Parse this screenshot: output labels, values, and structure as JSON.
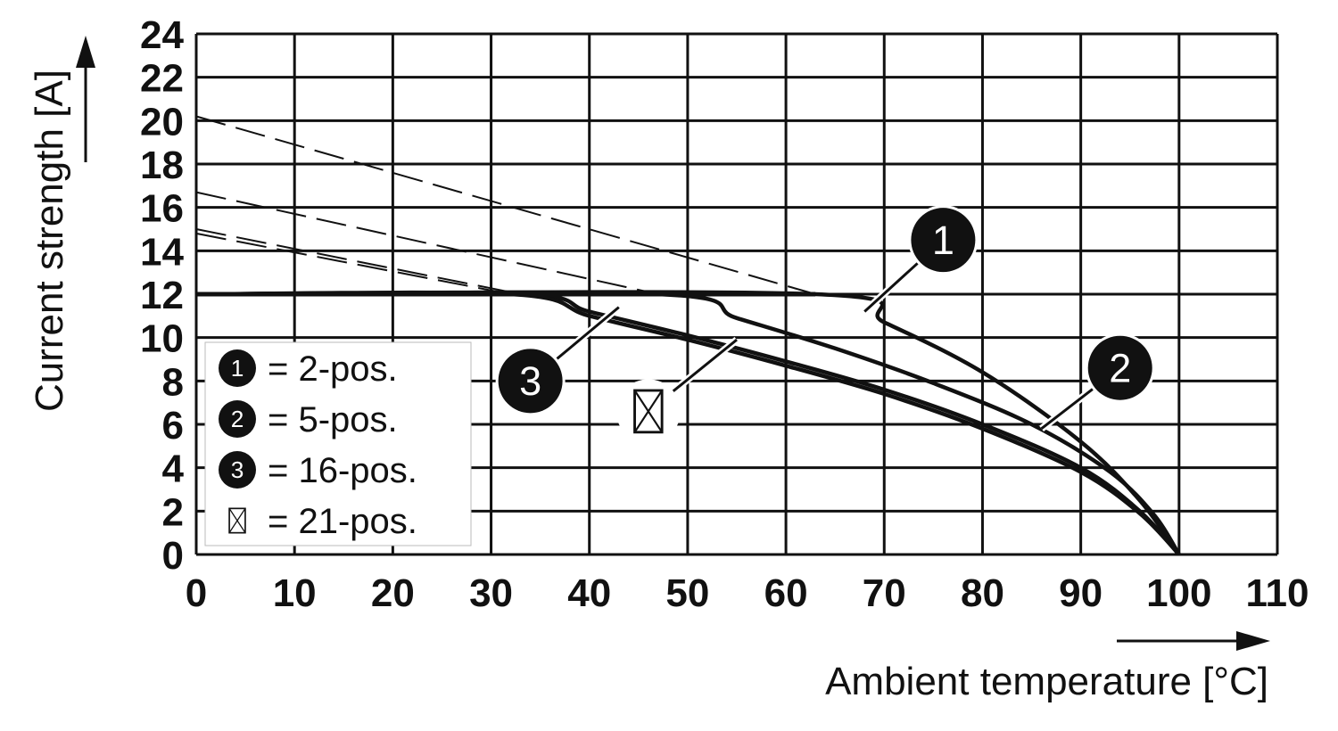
{
  "chart_data": {
    "type": "line",
    "xlabel": "Ambient temperature [°C]",
    "ylabel": "Current strength [A]",
    "xlim": [
      0,
      110
    ],
    "ylim": [
      0,
      24
    ],
    "x_ticks": [
      "0",
      "10",
      "20",
      "30",
      "40",
      "50",
      "60",
      "70",
      "80",
      "90",
      "100",
      "110"
    ],
    "y_ticks": [
      "0",
      "2",
      "4",
      "6",
      "8",
      "10",
      "12",
      "14",
      "16",
      "18",
      "20",
      "22",
      "24"
    ],
    "grid": true,
    "legend_placement": "lower-left",
    "series": [
      {
        "marker": "1",
        "name": "2-pos.",
        "values": [
          [
            0,
            12
          ],
          [
            63,
            12
          ],
          [
            70,
            10.7
          ],
          [
            80,
            8.4
          ],
          [
            90,
            5.2
          ],
          [
            96,
            2.5
          ],
          [
            100,
            0
          ]
        ]
      },
      {
        "marker": "2",
        "name": "5-pos.",
        "values": [
          [
            0,
            12
          ],
          [
            47,
            12
          ],
          [
            55,
            10.9
          ],
          [
            65,
            9.5
          ],
          [
            75,
            7.9
          ],
          [
            85,
            6.0
          ],
          [
            93,
            3.8
          ],
          [
            97.5,
            1.8
          ],
          [
            100,
            0
          ]
        ]
      },
      {
        "marker": "3",
        "name": "16-pos.",
        "values": [
          [
            0,
            12
          ],
          [
            33,
            12
          ],
          [
            40,
            11.2
          ],
          [
            50,
            10.1
          ],
          [
            60,
            8.9
          ],
          [
            70,
            7.6
          ],
          [
            80,
            6.0
          ],
          [
            90,
            4.0
          ],
          [
            96,
            2.0
          ],
          [
            100,
            0
          ]
        ]
      },
      {
        "marker": "⊠",
        "name": "21-pos.",
        "values": [
          [
            0,
            12
          ],
          [
            32,
            12
          ],
          [
            40,
            11.0
          ],
          [
            50,
            9.9
          ],
          [
            60,
            8.7
          ],
          [
            70,
            7.4
          ],
          [
            80,
            5.8
          ],
          [
            90,
            3.8
          ],
          [
            96,
            1.9
          ],
          [
            100,
            0
          ]
        ]
      }
    ],
    "extrapolated_dashed": [
      {
        "series": "2-pos.",
        "values": [
          [
            0,
            20.2
          ],
          [
            63,
            12
          ]
        ]
      },
      {
        "series": "5-pos.",
        "values": [
          [
            0,
            16.7
          ],
          [
            47,
            12
          ]
        ]
      },
      {
        "series": "16-pos.",
        "values": [
          [
            0,
            15.0
          ],
          [
            33,
            12
          ]
        ]
      },
      {
        "series": "21-pos.",
        "values": [
          [
            0,
            14.8
          ],
          [
            32,
            12
          ]
        ]
      }
    ],
    "legend": [
      {
        "marker": "1",
        "label": "= 2-pos."
      },
      {
        "marker": "2",
        "label": "= 5-pos."
      },
      {
        "marker": "3",
        "label": "= 16-pos."
      },
      {
        "marker": "⊠",
        "label": "= 21-pos."
      }
    ],
    "callouts": [
      {
        "marker": "1",
        "x": 76,
        "y": 14.5,
        "points_to": [
          68,
          11.2
        ]
      },
      {
        "marker": "2",
        "x": 94,
        "y": 8.6,
        "points_to": [
          86,
          5.8
        ]
      },
      {
        "marker": "3",
        "x": 34,
        "y": 8.0,
        "points_to": [
          43,
          11.4
        ]
      },
      {
        "marker": "⊠",
        "x": 46,
        "y": 6.6,
        "points_to": [
          55,
          9.9
        ]
      }
    ],
    "colors": {
      "line": "#111111",
      "grid": "#111111",
      "background": "#ffffff"
    }
  }
}
